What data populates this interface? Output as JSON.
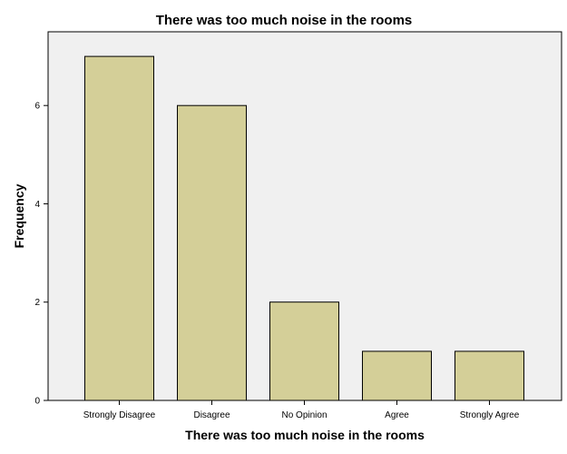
{
  "chart_data": {
    "type": "bar",
    "title": "There was too much noise in the rooms",
    "xlabel": "There was too much noise in the rooms",
    "ylabel": "Frequency",
    "categories": [
      "Strongly Disagree",
      "Disagree",
      "No Opinion",
      "Agree",
      "Strongly Agree"
    ],
    "values": [
      7,
      6,
      2,
      1,
      1
    ],
    "ylim": [
      0,
      7.5
    ],
    "yticks": [
      0,
      2,
      4,
      6
    ],
    "grid": false,
    "colors": {
      "bar_fill": "#d4cf98",
      "bar_stroke": "#000000",
      "plot_background": "#f0f0f0",
      "plot_border": "#000000"
    }
  }
}
